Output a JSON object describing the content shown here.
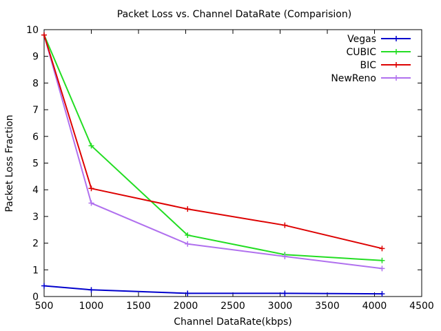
{
  "chart_data": {
    "type": "line",
    "title": "Packet Loss vs. Channel DataRate (Comparision)",
    "xlabel": "Channel DataRate(kbps)",
    "ylabel": "Packet Loss Fraction",
    "xlim": [
      500,
      4500
    ],
    "ylim": [
      0,
      10
    ],
    "xticks": [
      500,
      1000,
      1500,
      2000,
      2500,
      3000,
      3500,
      4000,
      4500
    ],
    "yticks": [
      0,
      1,
      2,
      3,
      4,
      5,
      6,
      7,
      8,
      9,
      10
    ],
    "grid": false,
    "legend_position": "top-right",
    "series": [
      {
        "name": "Vegas",
        "color": "#0000cc",
        "x": [
          500,
          1000,
          2020,
          3050,
          4080
        ],
        "values": [
          0.4,
          0.25,
          0.12,
          0.12,
          0.1
        ]
      },
      {
        "name": "CUBIC",
        "color": "#22dd22",
        "x": [
          500,
          1000,
          2020,
          3050,
          4080
        ],
        "values": [
          9.8,
          5.65,
          2.3,
          1.57,
          1.35
        ]
      },
      {
        "name": "BIC",
        "color": "#dd0000",
        "x": [
          500,
          1000,
          2020,
          3050,
          4080
        ],
        "values": [
          9.8,
          4.05,
          3.28,
          2.67,
          1.8
        ]
      },
      {
        "name": "NewReno",
        "color": "#b070ee",
        "x": [
          500,
          1000,
          2020,
          3050,
          4080
        ],
        "values": [
          9.8,
          3.5,
          1.97,
          1.5,
          1.05
        ]
      }
    ]
  }
}
